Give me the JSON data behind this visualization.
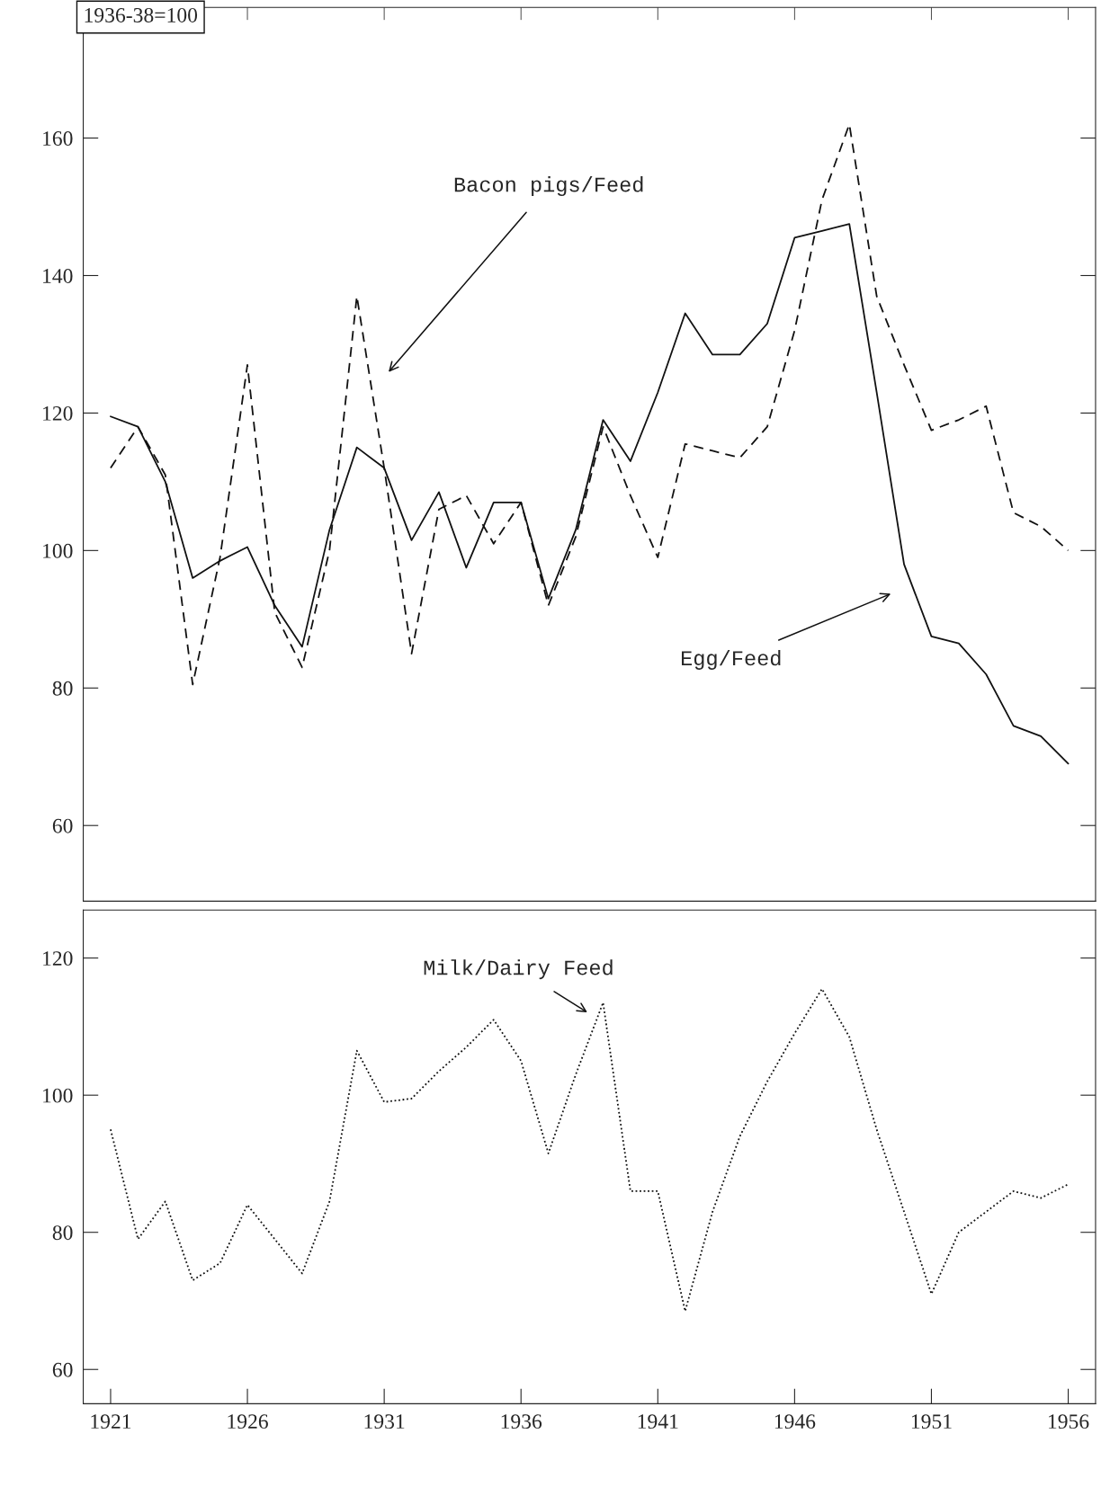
{
  "chart_data": [
    {
      "type": "line",
      "x": [
        1921,
        1922,
        1923,
        1924,
        1925,
        1926,
        1927,
        1928,
        1929,
        1930,
        1931,
        1932,
        1933,
        1934,
        1935,
        1936,
        1937,
        1938,
        1939,
        1940,
        1941,
        1942,
        1943,
        1944,
        1945,
        1946,
        1947,
        1948,
        1949,
        1950,
        1951,
        1952,
        1953,
        1954,
        1955,
        1956
      ],
      "series": [
        {
          "color": "#111111",
          "line_style": "solid",
          "values": [
            119.5,
            118,
            110,
            96,
            98.5,
            100.5,
            92,
            86,
            103,
            115,
            112,
            101.5,
            108.5,
            97.5,
            107,
            107,
            93,
            103,
            119,
            113,
            123,
            134.5,
            128.5,
            128.5,
            133,
            145.5,
            146.5,
            147.5,
            123,
            98,
            87.5,
            86.5,
            82,
            74.5,
            73,
            69
          ]
        },
        {
          "color": "#111111",
          "line_style": "dashed",
          "values": [
            112,
            118,
            111,
            80.5,
            99,
            127,
            91,
            83,
            100,
            137,
            112,
            85,
            106,
            108,
            101,
            107,
            92,
            102,
            118,
            108,
            99,
            115.5,
            114.5,
            113.5,
            118,
            132,
            151,
            162,
            137,
            127,
            117.5,
            119,
            121,
            105.5,
            103.5,
            100
          ]
        }
      ],
      "xlim": [
        1920,
        1957
      ],
      "xticks": [
        {
          "value": 1921,
          "label": null
        },
        {
          "value": 1926,
          "label": null
        },
        {
          "value": 1931,
          "label": null
        },
        {
          "value": 1936,
          "label": null
        },
        {
          "value": 1941,
          "label": null
        },
        {
          "value": 1946,
          "label": null
        },
        {
          "value": 1951,
          "label": null
        },
        {
          "value": 1956,
          "label": null
        }
      ],
      "ylim": [
        49,
        179
      ],
      "yticks": [
        60,
        80,
        100,
        120,
        140,
        160
      ],
      "tick_labels": "y",
      "grid": false,
      "legend": false,
      "annotations": [
        "1936-38=100",
        "Bacon pigs/Feed",
        "Egg/Feed"
      ]
    },
    {
      "type": "line",
      "x": [
        1921,
        1922,
        1923,
        1924,
        1925,
        1926,
        1927,
        1928,
        1929,
        1930,
        1931,
        1932,
        1933,
        1934,
        1935,
        1936,
        1937,
        1938,
        1939,
        1940,
        1941,
        1942,
        1943,
        1944,
        1945,
        1946,
        1947,
        1948,
        1949,
        1950,
        1951,
        1952,
        1953,
        1954,
        1955,
        1956
      ],
      "series": [
        {
          "color": "#111111",
          "line_style": "dotted",
          "values": [
            95,
            79,
            84.5,
            73,
            75.5,
            84,
            79,
            74,
            84.5,
            106.5,
            99,
            99.5,
            103.5,
            107,
            111,
            105,
            91.5,
            103,
            113.5,
            86,
            86,
            68.5,
            83,
            94,
            102,
            109,
            115.5,
            108.5,
            95,
            83,
            71,
            80,
            83,
            86,
            85,
            87
          ]
        }
      ],
      "xlim": [
        1920,
        1957
      ],
      "xticks": [
        1921,
        1926,
        1931,
        1936,
        1941,
        1946,
        1951,
        1956
      ],
      "ylim": [
        55,
        127
      ],
      "yticks": [
        60,
        80,
        100,
        120
      ],
      "grid": false,
      "legend": false,
      "annotations": [
        "Milk/Dairy Feed"
      ]
    }
  ]
}
